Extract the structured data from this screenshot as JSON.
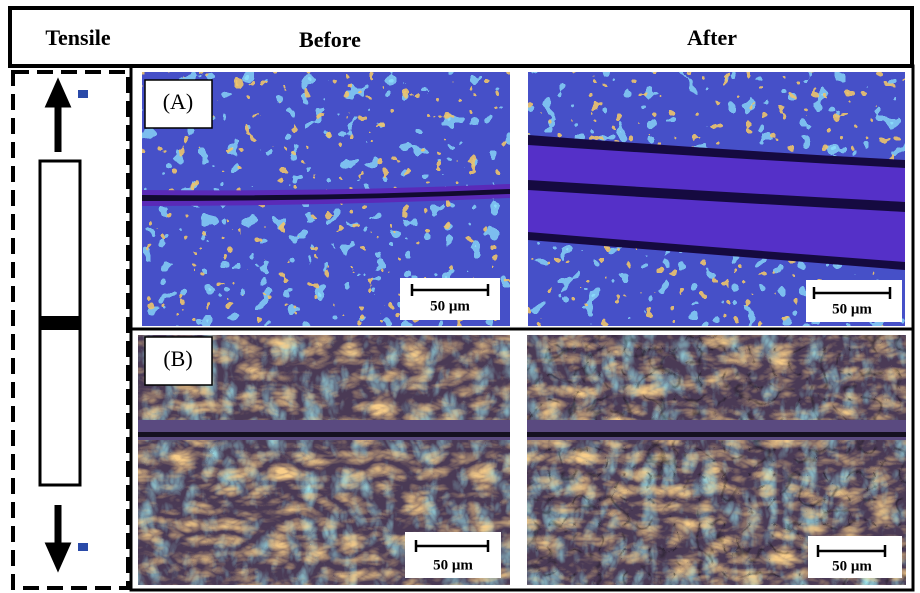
{
  "header": {
    "columns": [
      "Tensile",
      "Before",
      "After"
    ]
  },
  "panels": [
    {
      "label": "(A)",
      "images": [
        {
          "scale_bar": "50 μm"
        },
        {
          "scale_bar": "50 μm"
        }
      ]
    },
    {
      "label": "(B)",
      "images": [
        {
          "scale_bar": "50 μm"
        },
        {
          "scale_bar": "50 μm"
        }
      ]
    }
  ]
}
